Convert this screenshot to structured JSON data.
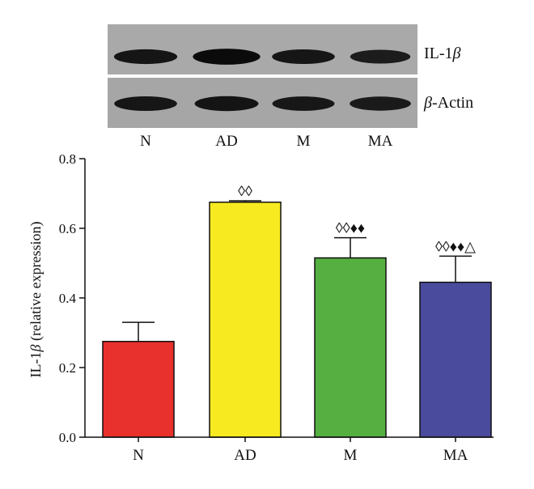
{
  "blot": {
    "rows": [
      {
        "label_prefix": "IL-1",
        "label_symbol": "β",
        "label_suffix": ""
      },
      {
        "label_prefix": "",
        "label_symbol": "β",
        "label_suffix": "-Actin"
      }
    ],
    "lanes": [
      "N",
      "AD",
      "M",
      "MA"
    ],
    "band_intensity": [
      [
        0.82,
        0.98,
        0.8,
        0.7
      ],
      [
        0.8,
        0.84,
        0.78,
        0.74
      ]
    ]
  },
  "chart_data": {
    "type": "bar",
    "categories": [
      "N",
      "AD",
      "M",
      "MA"
    ],
    "values": [
      0.275,
      0.675,
      0.515,
      0.445
    ],
    "errors": [
      0.055,
      0.004,
      0.058,
      0.075
    ],
    "annotations": [
      "",
      "◊◊",
      "◊◊♦♦",
      "◊◊♦♦△"
    ],
    "colors": [
      "#e8302c",
      "#f7ea21",
      "#55b041",
      "#4a4b9c"
    ],
    "ylabel_prefix": "IL-1",
    "ylabel_symbol": "β",
    "ylabel_suffix": " (relative expression)",
    "ylim": [
      0,
      0.8
    ],
    "yticks": [
      "0.0",
      "0.2",
      "0.4",
      "0.6",
      "0.8"
    ],
    "grid": false
  }
}
